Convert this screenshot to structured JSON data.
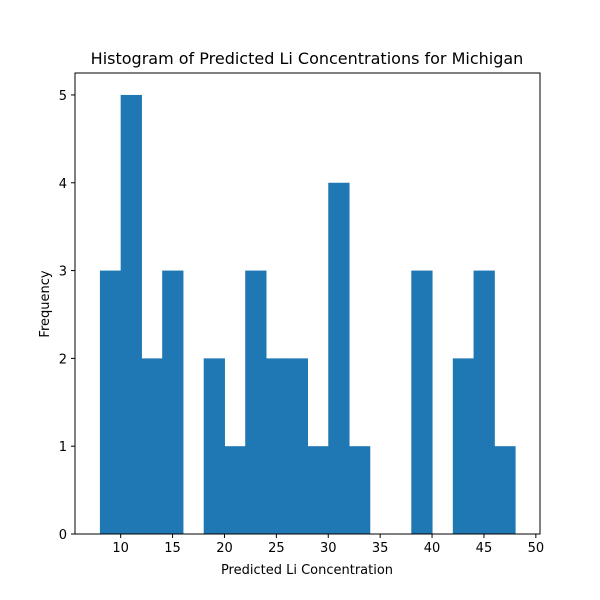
{
  "chart_data": {
    "type": "bar",
    "title": "Histogram of Predicted Li Concentrations for Michigan",
    "xlabel": "Predicted Li Concentration",
    "ylabel": "Frequency",
    "xlim": [
      5.6,
      50.4
    ],
    "ylim": [
      0,
      5.25
    ],
    "xticks": [
      10,
      15,
      20,
      25,
      30,
      35,
      40,
      45,
      50
    ],
    "yticks": [
      0,
      1,
      2,
      3,
      4,
      5
    ],
    "bin_edges": [
      8,
      10,
      12,
      14,
      16,
      18,
      20,
      22,
      24,
      26,
      28,
      30,
      32,
      34,
      36,
      38,
      40,
      42,
      44,
      46,
      48
    ],
    "values": [
      3,
      5,
      2,
      3,
      0,
      2,
      1,
      3,
      2,
      2,
      1,
      4,
      1,
      0,
      0,
      3,
      0,
      2,
      3,
      1
    ],
    "bar_color": "#1f77b4",
    "grid": false,
    "legend": false
  }
}
